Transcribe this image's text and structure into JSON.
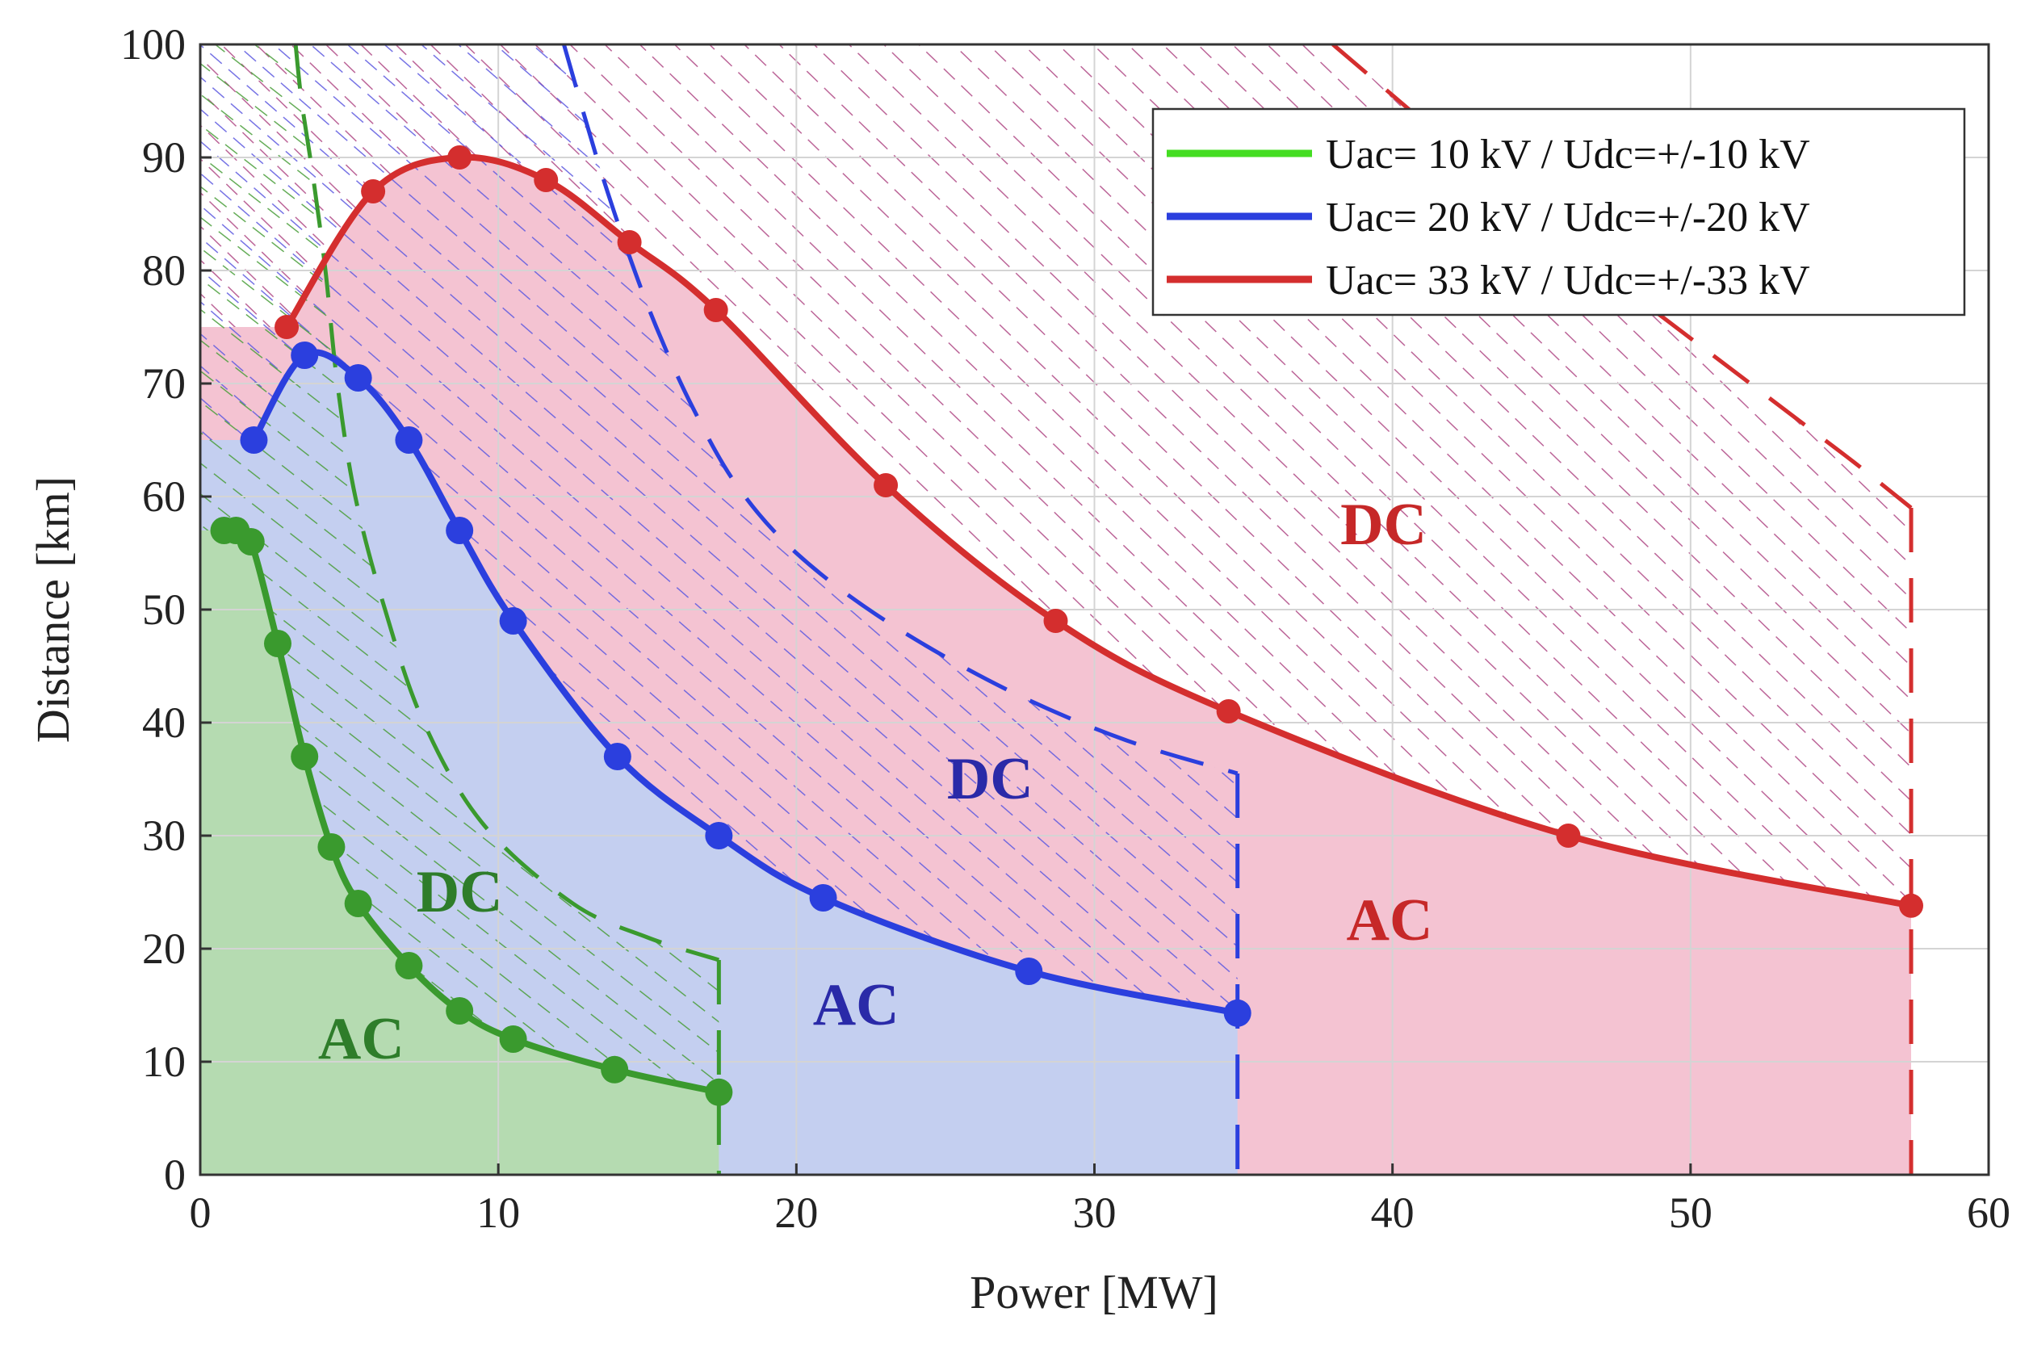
{
  "chart_data": {
    "type": "line",
    "title": "",
    "xlabel": "Power [MW]",
    "ylabel": "Distance [km]",
    "xlim": [
      0,
      60
    ],
    "ylim": [
      0,
      100
    ],
    "xticks": [
      0,
      10,
      20,
      30,
      40,
      50,
      60
    ],
    "yticks": [
      0,
      10,
      20,
      30,
      40,
      50,
      60,
      70,
      80,
      90,
      100
    ],
    "grid": true,
    "legend_position": "top-right",
    "series": [
      {
        "name": "Uac= 10 kV / Udc=+/-10 kV",
        "color": "#3a9a2e",
        "legend_color": "#44dd22",
        "fill": "#b5dbb1",
        "hatch": "#4a9e3a",
        "x": [
          0.8,
          1.2,
          1.7,
          2.6,
          3.5,
          4.4,
          5.3,
          7.0,
          8.7,
          10.5,
          13.9,
          17.4
        ],
        "y": [
          57,
          57,
          56,
          47,
          37,
          29,
          24,
          18.5,
          14.5,
          12,
          9.3,
          7.3
        ],
        "dc_limit_x": [
          3.2,
          3.4,
          3.8,
          4.2,
          4.6,
          5.2,
          6.2,
          7.5,
          9.5,
          12.5,
          15,
          17.4
        ],
        "dc_limit_y": [
          100,
          95,
          88,
          80,
          70,
          60,
          50,
          40,
          31,
          24,
          21,
          19
        ],
        "markers": "large"
      },
      {
        "name": "Uac= 20 kV / Udc=+/-20 kV",
        "color": "#2b3fde",
        "legend_color": "#2b3fde",
        "fill": "#c4cff0",
        "hatch": "#5e5ae0",
        "x": [
          1.8,
          3.5,
          5.3,
          7.0,
          8.7,
          10.5,
          14.0,
          17.4,
          20.9,
          27.8,
          34.8
        ],
        "y": [
          65,
          72.5,
          70.5,
          65,
          57,
          49,
          37,
          30,
          24.5,
          18,
          14.3
        ],
        "dc_limit_x": [
          12.2,
          13.3,
          14.3,
          15.3,
          16.5,
          18,
          20,
          23,
          27,
          31,
          34.8
        ],
        "dc_limit_y": [
          100,
          90,
          82,
          75,
          68,
          61,
          55,
          49,
          43,
          38.5,
          35.5
        ],
        "markers": "large"
      },
      {
        "name": "Uac= 33 kV / Udc=+/-33 kV",
        "color": "#d42e2e",
        "legend_color": "#d42e2e",
        "fill": "#f4c3d2",
        "hatch": "#b04a86",
        "x": [
          2.9,
          5.8,
          8.7,
          11.6,
          14.4,
          17.3,
          23.0,
          28.7,
          34.5,
          45.9,
          57.4
        ],
        "y": [
          75,
          87,
          90,
          88,
          82.5,
          76.5,
          61,
          49,
          41,
          30,
          23.8
        ],
        "dc_limit_x": [
          38,
          40,
          42,
          44,
          46,
          48,
          50,
          52,
          54,
          55.5,
          57.4
        ],
        "dc_limit_y": [
          100,
          95.5,
          91,
          86.5,
          82,
          78,
          74,
          70,
          66,
          63,
          59
        ],
        "markers": "small"
      }
    ],
    "annotations": [
      {
        "text": "DC",
        "x": 8.7,
        "y": 24.5,
        "color": "#2e7d2a"
      },
      {
        "text": "AC",
        "x": 5.4,
        "y": 11.5,
        "color": "#2e7d2a"
      },
      {
        "text": "DC",
        "x": 26.5,
        "y": 34.5,
        "color": "#2a2aa8"
      },
      {
        "text": "AC",
        "x": 22.0,
        "y": 14.5,
        "color": "#2a2aa8"
      },
      {
        "text": "DC",
        "x": 39.7,
        "y": 57,
        "color": "#c62828"
      },
      {
        "text": "AC",
        "x": 39.9,
        "y": 22,
        "color": "#c62828"
      }
    ]
  }
}
